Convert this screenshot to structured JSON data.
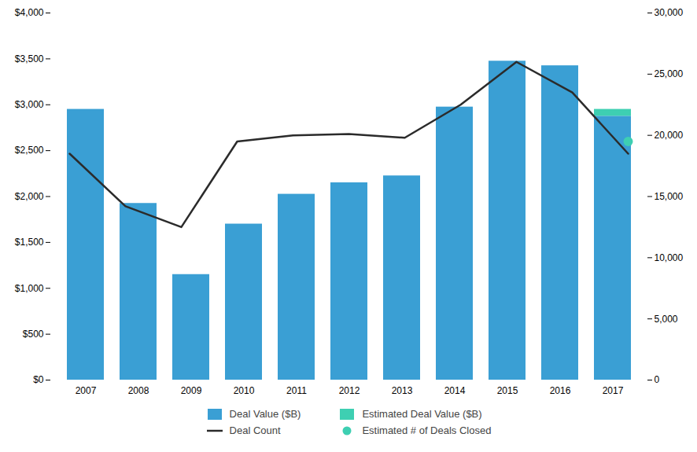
{
  "chart_data": {
    "type": "bar",
    "categories": [
      "2007",
      "2008",
      "2009",
      "2010",
      "2011",
      "2012",
      "2013",
      "2014",
      "2015",
      "2016",
      "2017"
    ],
    "stacked": true,
    "grid": false,
    "legend": "bottom",
    "series": [
      {
        "name": "Deal Value ($B)",
        "type": "bar",
        "color": "#3A9FD4",
        "values": [
          2950,
          1925,
          1150,
          1700,
          2025,
          2150,
          2225,
          2975,
          3475,
          3425,
          2875
        ]
      },
      {
        "name": "Estimated Deal Value ($B)",
        "type": "bar",
        "color": "#3ECFB2",
        "values": [
          0,
          0,
          0,
          0,
          0,
          0,
          0,
          0,
          0,
          0,
          75
        ]
      },
      {
        "name": "Deal Count",
        "type": "line",
        "color": "#2B2B2B",
        "axis": "y2",
        "values": [
          18500,
          14200,
          12500,
          19500,
          20000,
          20100,
          19800,
          22500,
          26000,
          23500,
          18500
        ]
      },
      {
        "name": "Estimated # of Deals Closed",
        "type": "scatter",
        "marker": "circle",
        "color": "#3ECFB2",
        "axis": "y2",
        "values": [
          null,
          null,
          null,
          null,
          null,
          null,
          null,
          null,
          null,
          null,
          19500
        ]
      }
    ],
    "ylim": [
      0,
      4000
    ],
    "yticks": [
      {
        "value": 0,
        "label": "$0"
      },
      {
        "value": 500,
        "label": "$500"
      },
      {
        "value": 1000,
        "label": "$1,000"
      },
      {
        "value": 1500,
        "label": "$1,500"
      },
      {
        "value": 2000,
        "label": "$2,000"
      },
      {
        "value": 2500,
        "label": "$2,500"
      },
      {
        "value": 3000,
        "label": "$3,000"
      },
      {
        "value": 3500,
        "label": "$3,500"
      },
      {
        "value": 4000,
        "label": "$4,000"
      }
    ],
    "y2lim": [
      0,
      30000
    ],
    "y2ticks": [
      0,
      {
        "value": 5000,
        "label": "5,000"
      },
      {
        "value": 10000,
        "label": "10,000"
      },
      {
        "value": 15000,
        "label": "15,000"
      },
      {
        "value": 20000,
        "label": "20,000"
      },
      {
        "value": 25000,
        "label": "25,000"
      },
      {
        "value": 30000,
        "label": "30,000"
      }
    ]
  }
}
